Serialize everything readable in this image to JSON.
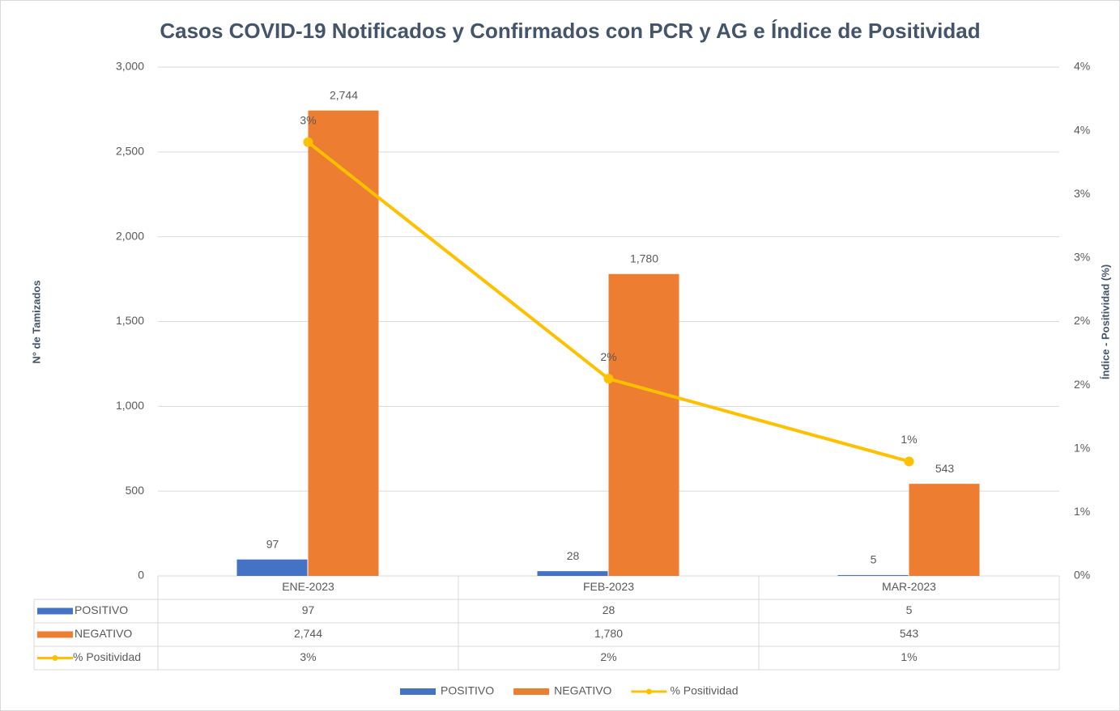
{
  "chart_data": {
    "type": "bar_line",
    "title": "Casos COVID-19 Notificados y Confirmados con PCR y AG e Índice de Positividad",
    "y_axis_label": "N° de Tamizados",
    "y2_axis_label": "Índice - Positividad (%)",
    "categories": [
      "ENE-2023",
      "FEB-2023",
      "MAR-2023"
    ],
    "series": [
      {
        "name": "POSITIVO",
        "type": "bar",
        "color": "#4472c4",
        "values": [
          97,
          28,
          5
        ]
      },
      {
        "name": "NEGATIVO",
        "type": "bar",
        "color": "#ed7d31",
        "values": [
          2744,
          1780,
          543
        ],
        "value_labels": [
          "2,744",
          "1,780",
          "543"
        ]
      },
      {
        "name": "% Positividad",
        "type": "line",
        "axis": "y2",
        "color": "#ffc000",
        "values": [
          3.41,
          1.55,
          0.9
        ],
        "value_labels": [
          "3%",
          "2%",
          "1%"
        ]
      }
    ],
    "ylim": [
      0,
      3000
    ],
    "yticks": [
      0,
      500,
      {
        "value": 1000,
        "label": "1,000"
      },
      {
        "value": 1500,
        "label": "1,500"
      },
      {
        "value": 2000,
        "label": "2,000"
      },
      {
        "value": 2500,
        "label": "2,500"
      },
      {
        "value": 3000,
        "label": "3,000"
      }
    ],
    "y2lim": [
      0,
      4
    ],
    "y2ticks": [
      {
        "value": 0,
        "label": "0%"
      },
      {
        "value": 0.5,
        "label": "1%"
      },
      {
        "value": 1,
        "label": "1%"
      },
      {
        "value": 1.5,
        "label": "2%"
      },
      {
        "value": 2,
        "label": "2%"
      },
      {
        "value": 2.5,
        "label": "3%"
      },
      {
        "value": 3,
        "label": "3%"
      },
      {
        "value": 3.5,
        "label": "4%"
      },
      {
        "value": 4,
        "label": "4%"
      }
    ],
    "grid": true,
    "legend": "bottom",
    "data_table": true
  }
}
